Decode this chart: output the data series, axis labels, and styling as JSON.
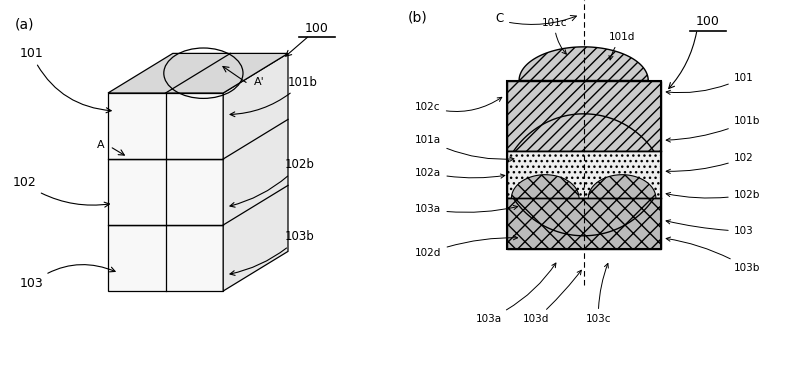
{
  "fig_width": 8.0,
  "fig_height": 3.66,
  "bg_color": "#ffffff",
  "ec": "#000000",
  "label_a": "(a)",
  "label_b": "(b)",
  "ref_100": "100",
  "ref_101": "101",
  "ref_102": "102",
  "ref_103": "103",
  "ref_101b": "101b",
  "ref_102b": "102b",
  "ref_103b": "103b",
  "ref_A": "A",
  "ref_Ap": "A'",
  "ref_101a": "101a",
  "ref_101c": "101c",
  "ref_101d": "101d",
  "ref_102a": "102a",
  "ref_102c": "102c",
  "ref_102d": "102d",
  "ref_103a": "103a",
  "ref_103b_b": "103b",
  "ref_103c": "103c",
  "ref_103d": "103d",
  "ref_C": "C",
  "face_front": "#f8f8f8",
  "face_right": "#e8e8e8",
  "face_top": "#d8d8d8",
  "hatch_diag": "///",
  "hatch_dots": "...",
  "hatch_cross": "xx",
  "layer101_fill": "#cccccc",
  "layer102_fill": "#eeeeee",
  "layer103_fill": "#bbbbbb"
}
